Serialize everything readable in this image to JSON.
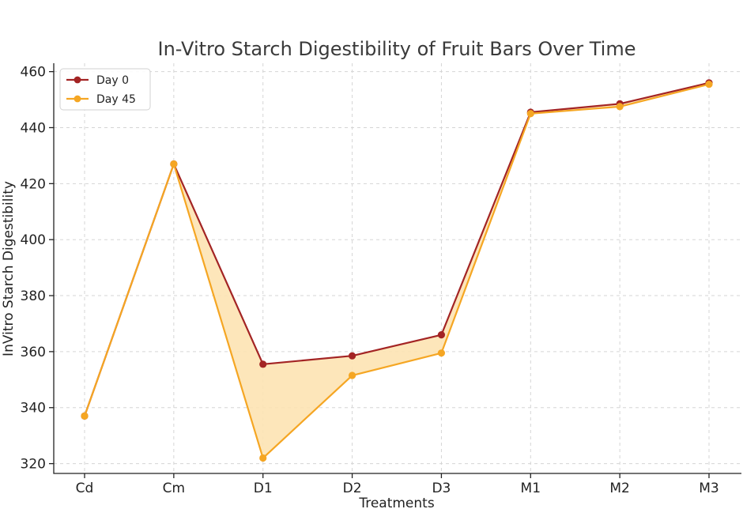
{
  "chart_data": {
    "type": "line",
    "title": "In-Vitro Starch Digestibility of Fruit Bars Over Time",
    "xlabel": "Treatments",
    "ylabel": "InVitro Starch Digestibility",
    "categories": [
      "Cd",
      "Cm",
      "D1",
      "D2",
      "D3",
      "M1",
      "M2",
      "M3"
    ],
    "yticks": [
      320,
      340,
      360,
      380,
      400,
      420,
      440,
      460
    ],
    "ylim": [
      316.5,
      463
    ],
    "grid": true,
    "legend_position": "top-left",
    "series": [
      {
        "name": "Day 0",
        "color": "#a32424",
        "values": [
          337,
          427,
          355.5,
          358.5,
          366,
          445.5,
          448.5,
          456
        ]
      },
      {
        "name": "Day 45",
        "color": "#f5a623",
        "values": [
          337,
          427,
          322,
          351.5,
          359.5,
          445,
          447.5,
          455.5
        ]
      }
    ],
    "fill_between": {
      "color": "#fde3b3"
    }
  }
}
